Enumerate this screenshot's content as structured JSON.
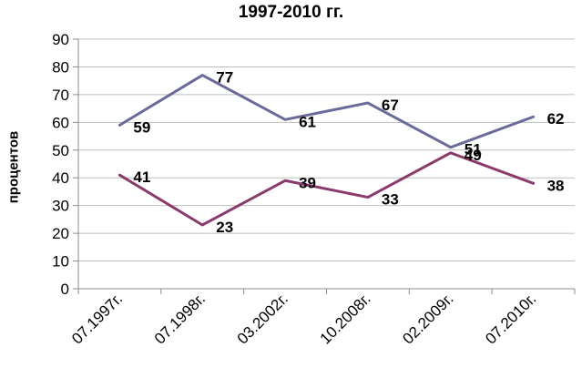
{
  "chart_data": {
    "type": "line",
    "title": "1997-2010 гг.",
    "xlabel": "",
    "ylabel": "процентов",
    "categories": [
      "07.1997г.",
      "07.1998г.",
      "03.2002г.",
      "10.2008г.",
      "02.2009г.",
      "07.2010г."
    ],
    "ylim": [
      0,
      90
    ],
    "yticks": [
      "0",
      "10",
      "20",
      "30",
      "40",
      "50",
      "60",
      "70",
      "80",
      "90"
    ],
    "grid": true,
    "legend": "none",
    "series": [
      {
        "values": [
          59,
          77,
          61,
          67,
          51,
          62
        ],
        "labels": [
          "59",
          "77",
          "61",
          "67",
          "51",
          "62"
        ],
        "color": "#6b6b9b"
      },
      {
        "values": [
          41,
          23,
          39,
          33,
          49,
          38
        ],
        "labels": [
          "41",
          "23",
          "39",
          "33",
          "49",
          "38"
        ],
        "color": "#8b3a6b"
      }
    ]
  }
}
